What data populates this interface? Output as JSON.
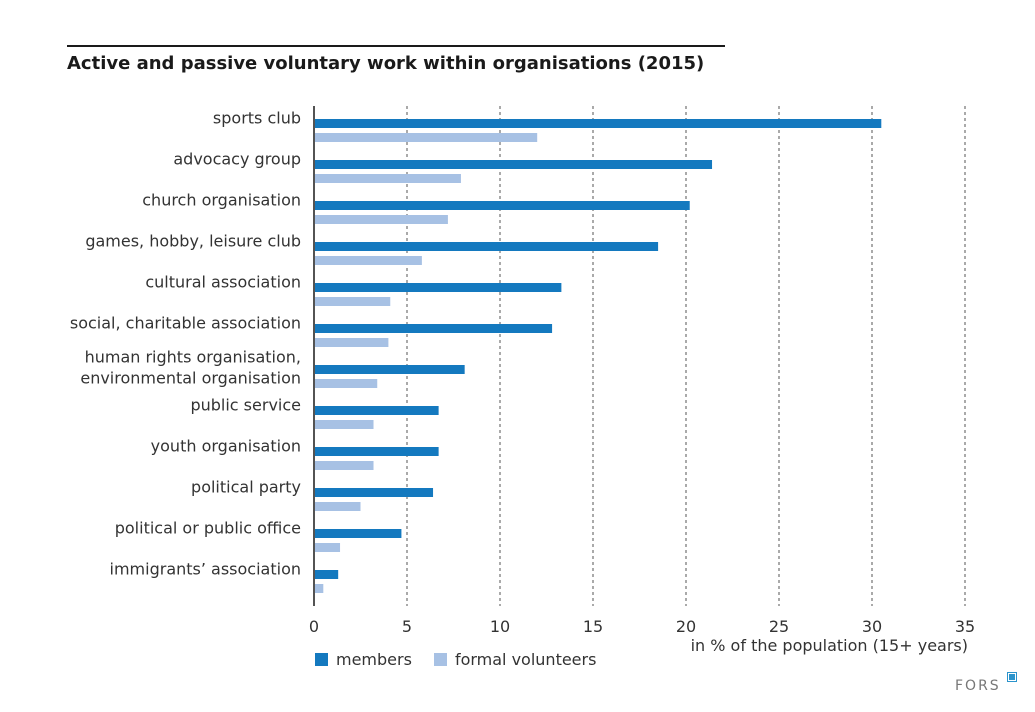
{
  "chart_data": {
    "type": "bar",
    "orientation": "horizontal",
    "title": "Active and passive voluntary work within organisations (2015)",
    "xlabel": "in % of the population (15+ years)",
    "ylabel": "",
    "xlim": [
      0,
      35
    ],
    "xticks": [
      0,
      5,
      10,
      15,
      20,
      25,
      30,
      35
    ],
    "grid": "vertical dashed",
    "legend_position": "bottom-left",
    "categories": [
      [
        "sports club"
      ],
      [
        "advocacy group"
      ],
      [
        "church organisation"
      ],
      [
        "games, hobby, leisure club"
      ],
      [
        "cultural association"
      ],
      [
        "social, charitable association"
      ],
      [
        "human rights organisation,",
        "environmental organisation"
      ],
      [
        "public service"
      ],
      [
        "youth organisation"
      ],
      [
        "political party"
      ],
      [
        "political or public office"
      ],
      [
        "immigrants’ association"
      ]
    ],
    "series": [
      {
        "name": "members",
        "color": "#1479bf",
        "values": [
          30.5,
          21.4,
          20.2,
          18.5,
          13.3,
          12.8,
          8.1,
          6.7,
          6.7,
          6.4,
          4.7,
          1.3
        ]
      },
      {
        "name": "formal volunteers",
        "color": "#a7c1e4",
        "values": [
          12.0,
          7.9,
          7.2,
          5.8,
          4.1,
          4.0,
          3.4,
          3.2,
          3.2,
          2.5,
          1.4,
          0.5
        ]
      }
    ]
  },
  "brand": {
    "name": "FORS",
    "accent": "#2b94cc"
  }
}
